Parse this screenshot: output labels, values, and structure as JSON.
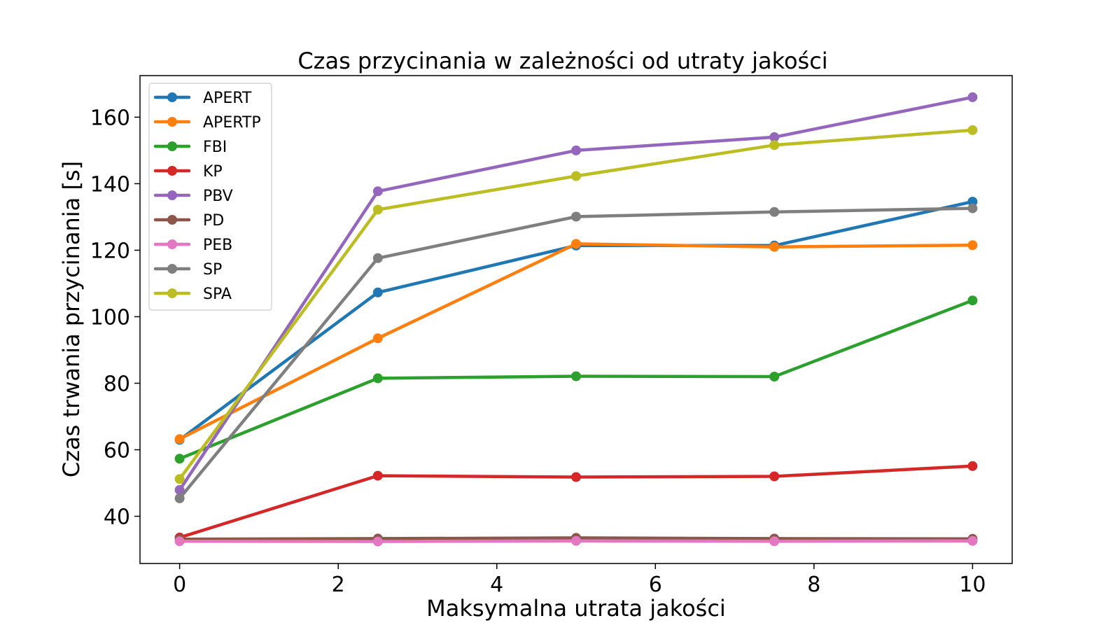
{
  "chart_data": {
    "type": "line",
    "title": "Czas przycinania w zależności od utraty jakości",
    "xlabel": "Maksymalna utrata jakości",
    "ylabel": "Czas trwania przycinania [s]",
    "xlim": [
      -0.5,
      10.5
    ],
    "ylim": [
      25.8,
      172.5
    ],
    "xticks": [
      0,
      2,
      4,
      6,
      8,
      10
    ],
    "yticks": [
      40,
      60,
      80,
      100,
      120,
      140,
      160
    ],
    "x": [
      0,
      2.5,
      5,
      7.5,
      10
    ],
    "grid": false,
    "legend_position": "top-left",
    "series": [
      {
        "name": "APERT",
        "color": "#1f77b4",
        "values": [
          63.0,
          107.3,
          121.4,
          121.4,
          134.6
        ]
      },
      {
        "name": "APERTP",
        "color": "#ff7f0e",
        "values": [
          63.2,
          93.5,
          121.9,
          121.0,
          121.5
        ]
      },
      {
        "name": "FBI",
        "color": "#2ca02c",
        "values": [
          57.3,
          81.5,
          82.1,
          82.0,
          104.9
        ]
      },
      {
        "name": "KP",
        "color": "#d62728",
        "values": [
          33.6,
          52.2,
          51.8,
          52.0,
          55.1
        ]
      },
      {
        "name": "PBV",
        "color": "#9467bd",
        "values": [
          47.9,
          137.7,
          150.0,
          154.0,
          166.0
        ]
      },
      {
        "name": "PD",
        "color": "#8c564b",
        "values": [
          33.1,
          33.3,
          33.5,
          33.3,
          33.2
        ]
      },
      {
        "name": "PEB",
        "color": "#e377c2",
        "values": [
          32.5,
          32.4,
          32.6,
          32.5,
          32.6
        ]
      },
      {
        "name": "SP",
        "color": "#7f7f7f",
        "values": [
          45.4,
          117.6,
          130.1,
          131.5,
          132.6
        ]
      },
      {
        "name": "SPA",
        "color": "#bcbd22",
        "values": [
          51.2,
          132.2,
          142.3,
          151.6,
          156.1
        ]
      }
    ]
  }
}
